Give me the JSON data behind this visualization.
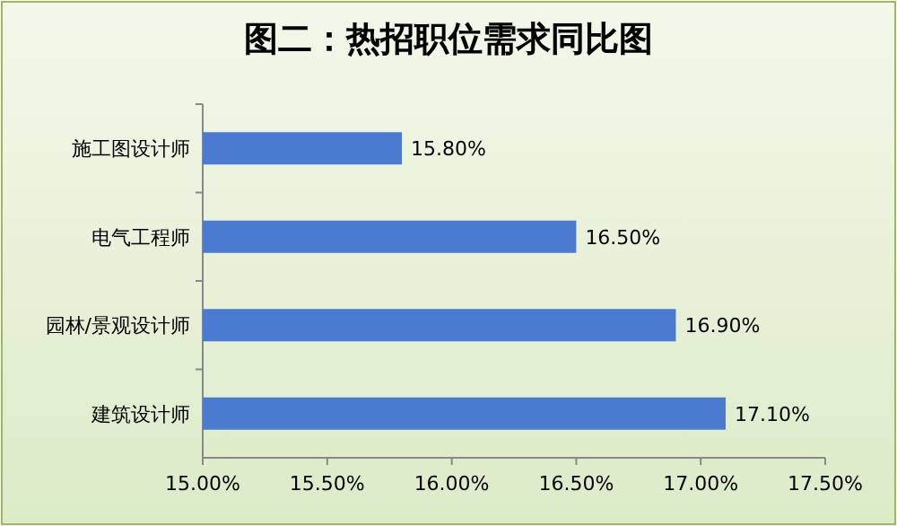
{
  "chart_data": {
    "type": "bar",
    "orientation": "horizontal",
    "title": "图二：热招职位需求同比图",
    "categories": [
      "施工图设计师",
      "电气工程师",
      "园林/景观设计师",
      "建筑设计师"
    ],
    "values": [
      15.8,
      16.5,
      16.9,
      17.1
    ],
    "value_labels": [
      "15.80%",
      "16.50%",
      "16.90%",
      "17.10%"
    ],
    "color": "#4a7bd0",
    "xlim": [
      15,
      17.5
    ],
    "xticks": [
      {
        "value": 15,
        "label": "15.00%"
      },
      {
        "value": 15.5,
        "label": "15.50%"
      },
      {
        "value": 16,
        "label": "16.00%"
      },
      {
        "value": 16.5,
        "label": "16.50%"
      },
      {
        "value": 17,
        "label": "17.00%"
      },
      {
        "value": 17.5,
        "label": "17.50%"
      }
    ],
    "grid": false
  }
}
